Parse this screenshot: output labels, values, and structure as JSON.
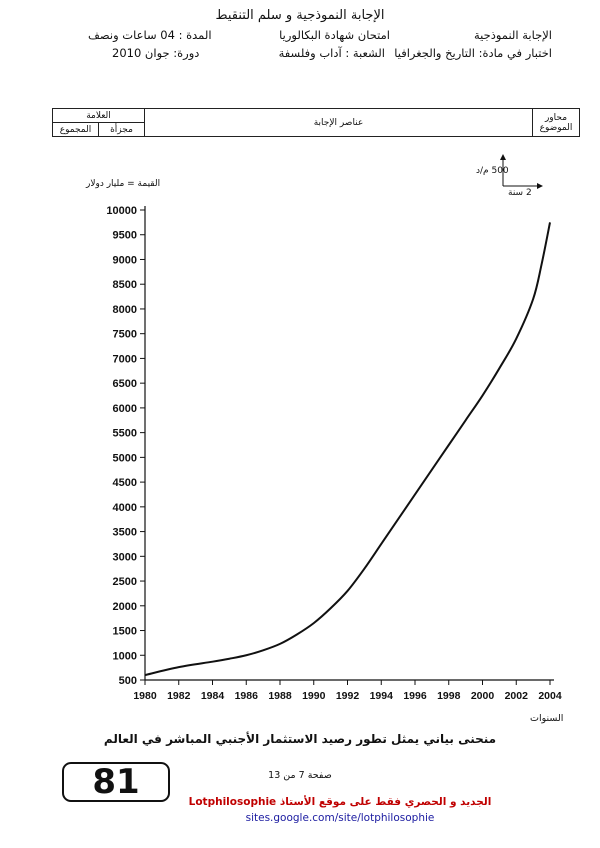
{
  "header": {
    "title": "الإجابة النموذجية و سلم التنقيط",
    "line1_right": "الإجابة النموذجية",
    "line1_mid": "امتحان شهادة البكالوريا",
    "line1_left": "المدة : 04 ساعات ونصف",
    "line2_right": "اختبار في مادة: التاريخ والجغرافيا",
    "line2_mid": "الشعبة : آداب وفلسفة",
    "line2_left": "دورة: جوان 2010"
  },
  "grading_table": {
    "col_axes": "محاور الموضوع",
    "col_elements": "عناصر الإجابة",
    "col_mark": "العلامة",
    "col_partial": "مجزأة",
    "col_total": "المجموع"
  },
  "scale_key": {
    "y_scale": "500 م/د",
    "x_scale": "2 سنة"
  },
  "chart_data": {
    "type": "line",
    "ylabel": "القيمة = مليار دولار",
    "xlabel": "السنوات",
    "title": "منحنى بياني يمثل تطور رصيد الاستثمار الأجنبي المباشر في العالم",
    "ylim": [
      500,
      10000
    ],
    "xlim": [
      1980,
      2004
    ],
    "y_ticks": [
      500,
      1000,
      1500,
      2000,
      2500,
      3000,
      3500,
      4000,
      4500,
      5000,
      5500,
      6000,
      6500,
      7000,
      7500,
      8000,
      8500,
      9000,
      9500,
      10000
    ],
    "x_ticks": [
      1980,
      1982,
      1984,
      1986,
      1988,
      1990,
      1992,
      1994,
      1996,
      1998,
      2000,
      2002,
      2004
    ],
    "x": [
      1980,
      1982,
      1984,
      1985,
      1986,
      1987,
      1988,
      1989,
      1990,
      1991,
      1992,
      1993,
      1994,
      1995,
      1996,
      1997,
      1998,
      1999,
      2000,
      2001,
      2002,
      2003,
      2003.5,
      2004
    ],
    "y": [
      600,
      760,
      870,
      930,
      1000,
      1100,
      1230,
      1420,
      1650,
      1950,
      2300,
      2750,
      3250,
      3750,
      4250,
      4750,
      5250,
      5750,
      6250,
      6800,
      7400,
      8200,
      8900,
      9750
    ],
    "grid": false
  },
  "footer": {
    "page_number": "81",
    "page_info": "صفحة 7 من 13",
    "promo": "الجديد و الحصري فقط على موقع الأستاذ Lotphilosophie",
    "url": "sites.google.com/site/lotphilosophie"
  }
}
